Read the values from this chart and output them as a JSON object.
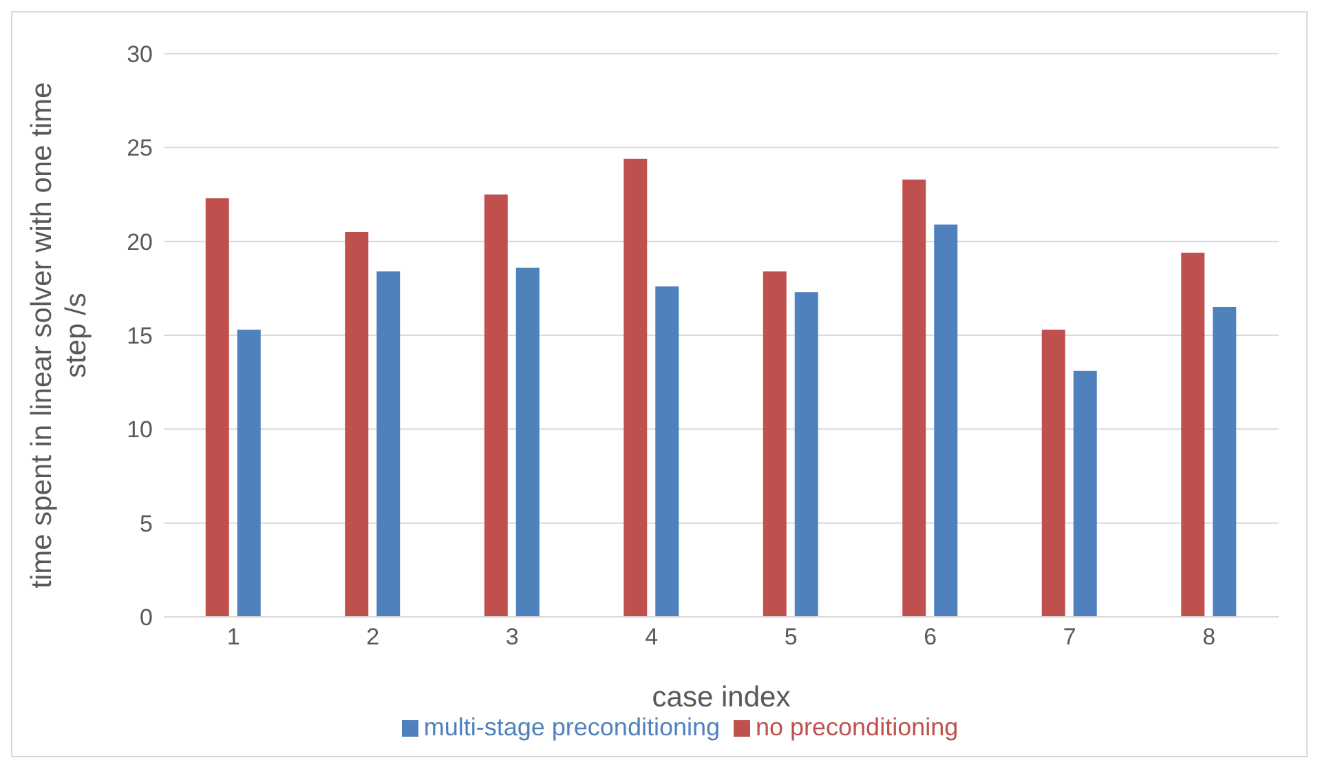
{
  "chart_data": {
    "type": "bar",
    "xlabel": "case index",
    "ylabel": "time spent in linear solver with one time step /s",
    "categories": [
      "1",
      "2",
      "3",
      "4",
      "5",
      "6",
      "7",
      "8"
    ],
    "series": [
      {
        "name": "no preconditioning",
        "color": "#c0504d",
        "values": [
          22.3,
          20.5,
          22.5,
          24.4,
          18.4,
          23.3,
          15.3,
          19.4
        ]
      },
      {
        "name": "multi-stage preconditioning",
        "color": "#4f81bd",
        "values": [
          15.3,
          18.4,
          18.6,
          17.6,
          17.3,
          20.9,
          13.1,
          16.5
        ]
      }
    ],
    "ylim": [
      0,
      30
    ],
    "yticks": [
      0,
      5,
      10,
      15,
      20,
      25,
      30
    ],
    "grid": "y",
    "legend": "bottom"
  }
}
